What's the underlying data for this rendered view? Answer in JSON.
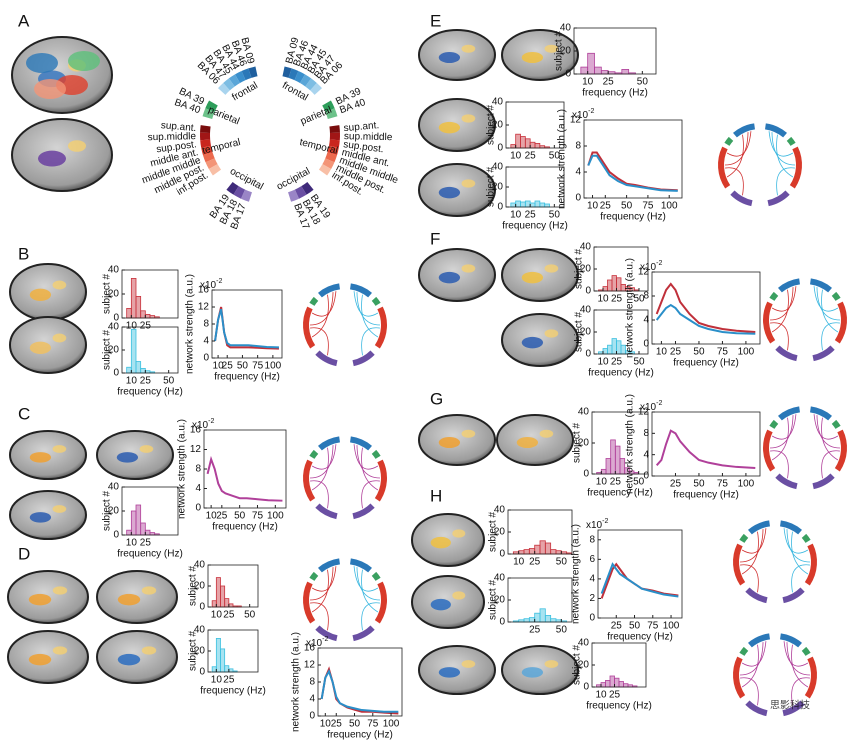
{
  "panel_labels": [
    "A",
    "B",
    "C",
    "D",
    "E",
    "F",
    "G",
    "H"
  ],
  "atlas": {
    "left": [
      {
        "title": "frontal",
        "areas": [
          "BA 09",
          "BA 46",
          "BA 44",
          "BA 45",
          "BA 47",
          "BA 06"
        ]
      },
      {
        "title": "parietal",
        "areas": [
          "BA 39",
          "BA 40"
        ]
      },
      {
        "title": "temporal",
        "areas": [
          "sup.ant.",
          "sup.middle",
          "sup.post.",
          "middle ant.",
          "middle middle",
          "middle post.",
          "inf.post."
        ]
      },
      {
        "title": "occipital",
        "areas": [
          "BA 19",
          "BA 18",
          "BA 17"
        ]
      }
    ],
    "right": [
      {
        "title": "frontal",
        "areas": [
          "BA 09",
          "BA 46",
          "BA 44",
          "BA 45",
          "BA 47",
          "BA 06"
        ]
      },
      {
        "title": "parietal",
        "areas": [
          "BA 39",
          "BA 40"
        ]
      },
      {
        "title": "temporal",
        "areas": [
          "sup.ant.",
          "sup.middle",
          "sup.post.",
          "middle ant.",
          "middle middle",
          "middle post.",
          "inf.post."
        ]
      },
      {
        "title": "occipital",
        "areas": [
          "BA 19",
          "BA 18",
          "BA 17"
        ]
      }
    ]
  },
  "histograms": [
    {
      "ylabel": "subject #",
      "color": "#c8323c",
      "bins": [
        0,
        5,
        10,
        15,
        20,
        25,
        30,
        35,
        40,
        45,
        50,
        55,
        60
      ],
      "counts": [
        0,
        8,
        33,
        18,
        6,
        3,
        2,
        1,
        0,
        0,
        0,
        0
      ],
      "xlim": [
        0,
        60
      ],
      "ylim": [
        0,
        40
      ],
      "xticks": [
        10,
        25
      ],
      "yticks": [
        0,
        20,
        40
      ]
    },
    {
      "ylabel": "subject #",
      "xlabel": "frequency (Hz)",
      "color": "#3cc0e0",
      "bins": [
        0,
        5,
        10,
        15,
        20,
        25,
        30,
        35,
        40,
        45,
        50,
        55,
        60
      ],
      "counts": [
        0,
        5,
        38,
        10,
        4,
        2,
        1,
        0,
        0,
        0,
        0,
        0
      ],
      "xlim": [
        0,
        60
      ],
      "ylim": [
        0,
        40
      ],
      "xticks": [
        10,
        25,
        50
      ],
      "yticks": [
        0,
        20,
        40
      ]
    },
    {
      "ylabel": "subject #",
      "xlabel": "frequency (Hz)",
      "color": "#b0409a",
      "bins": [
        0,
        5,
        10,
        15,
        20,
        25,
        30,
        35,
        40,
        45,
        50,
        55,
        60
      ],
      "counts": [
        0,
        4,
        20,
        25,
        10,
        4,
        2,
        1,
        0,
        0,
        0,
        0
      ],
      "xlim": [
        0,
        60
      ],
      "ylim": [
        0,
        40
      ],
      "xticks": [
        10,
        25
      ],
      "yticks": [
        0,
        20,
        40
      ]
    },
    {
      "ylabel": "subject #",
      "color": "#c8323c",
      "bins": [
        0,
        5,
        10,
        15,
        20,
        25,
        30,
        35,
        40,
        45,
        50,
        55,
        60
      ],
      "counts": [
        0,
        6,
        28,
        20,
        8,
        3,
        1,
        1,
        0,
        0,
        0,
        0
      ],
      "xlim": [
        0,
        60
      ],
      "ylim": [
        0,
        40
      ],
      "xticks": [
        10,
        25,
        50
      ],
      "yticks": [
        0,
        20,
        40
      ]
    },
    {
      "ylabel": "subject #",
      "xlabel": "frequency (Hz)",
      "color": "#3cc0e0",
      "bins": [
        0,
        5,
        10,
        15,
        20,
        25,
        30,
        35,
        40,
        45,
        50,
        55,
        60
      ],
      "counts": [
        0,
        5,
        32,
        22,
        6,
        3,
        1,
        0,
        0,
        0,
        0,
        0
      ],
      "xlim": [
        0,
        60
      ],
      "ylim": [
        0,
        40
      ],
      "xticks": [
        10,
        25
      ],
      "yticks": [
        0,
        20,
        40
      ]
    },
    {
      "ylabel": "subject #",
      "xlabel": "frequency (Hz)",
      "color": "#b0409a",
      "bins": [
        0,
        5,
        10,
        15,
        20,
        25,
        30,
        35,
        40,
        45,
        50,
        55,
        60
      ],
      "counts": [
        0,
        6,
        18,
        6,
        3,
        2,
        1,
        4,
        1,
        0,
        0,
        0
      ],
      "xlim": [
        0,
        60
      ],
      "ylim": [
        0,
        40
      ],
      "xticks": [
        10,
        25,
        50
      ],
      "yticks": [
        0,
        20,
        40
      ]
    },
    {
      "ylabel": "subject #",
      "color": "#c8323c",
      "bins": [
        0,
        5,
        10,
        15,
        20,
        25,
        30,
        35,
        40,
        45,
        50,
        55,
        60
      ],
      "counts": [
        0,
        3,
        12,
        10,
        8,
        5,
        4,
        2,
        1,
        0,
        0,
        0
      ],
      "xlim": [
        0,
        60
      ],
      "ylim": [
        0,
        40
      ],
      "xticks": [
        10,
        25,
        50
      ],
      "yticks": [
        0,
        20,
        40
      ]
    },
    {
      "ylabel": "subject #",
      "xlabel": "frequency (Hz)",
      "color": "#3cc0e0",
      "bins": [
        0,
        5,
        10,
        15,
        20,
        25,
        30,
        35,
        40,
        45,
        50,
        55,
        60
      ],
      "counts": [
        0,
        4,
        6,
        5,
        6,
        4,
        6,
        4,
        3,
        0,
        0,
        0
      ],
      "xlim": [
        0,
        60
      ],
      "ylim": [
        0,
        40
      ],
      "xticks": [
        10,
        25,
        50
      ],
      "yticks": [
        0,
        20,
        40
      ]
    },
    {
      "ylabel": "subject #",
      "color": "#c8323c",
      "bins": [
        0,
        5,
        10,
        15,
        20,
        25,
        30,
        35,
        40,
        45,
        50,
        55,
        60
      ],
      "counts": [
        0,
        1,
        4,
        10,
        14,
        12,
        6,
        4,
        3,
        1,
        0,
        0
      ],
      "xlim": [
        0,
        60
      ],
      "ylim": [
        0,
        40
      ],
      "xticks": [
        10,
        25,
        50
      ],
      "yticks": [
        0,
        20,
        40
      ]
    },
    {
      "ylabel": "subject #",
      "xlabel": "frequency (Hz)",
      "color": "#3cc0e0",
      "bins": [
        0,
        5,
        10,
        15,
        20,
        25,
        30,
        35,
        40,
        45,
        50,
        55,
        60
      ],
      "counts": [
        0,
        2,
        5,
        8,
        14,
        12,
        8,
        3,
        2,
        0,
        0,
        0
      ],
      "xlim": [
        0,
        60
      ],
      "ylim": [
        0,
        40
      ],
      "xticks": [
        10,
        25,
        50
      ],
      "yticks": [
        0,
        20,
        40
      ]
    },
    {
      "ylabel": "subject #",
      "xlabel": "frequency (Hz)",
      "color": "#b0409a",
      "bins": [
        0,
        5,
        10,
        15,
        20,
        25,
        30,
        35,
        40,
        45,
        50,
        55,
        60
      ],
      "counts": [
        0,
        1,
        3,
        10,
        22,
        18,
        10,
        4,
        2,
        1,
        0,
        0
      ],
      "xlim": [
        0,
        60
      ],
      "ylim": [
        0,
        40
      ],
      "xticks": [
        10,
        25,
        50
      ],
      "yticks": [
        0,
        20,
        40
      ]
    },
    {
      "ylabel": "subject #",
      "color": "#c8323c",
      "bins": [
        0,
        5,
        10,
        15,
        20,
        25,
        30,
        35,
        40,
        45,
        50,
        55,
        60
      ],
      "counts": [
        0,
        2,
        3,
        4,
        5,
        8,
        12,
        10,
        4,
        3,
        2,
        1
      ],
      "xlim": [
        0,
        60
      ],
      "ylim": [
        0,
        40
      ],
      "xticks": [
        10,
        25,
        50
      ],
      "yticks": [
        0,
        20,
        40
      ]
    },
    {
      "ylabel": "subject #",
      "color": "#3cc0e0",
      "bins": [
        0,
        5,
        10,
        15,
        20,
        25,
        30,
        35,
        40,
        45,
        50,
        55,
        60
      ],
      "counts": [
        0,
        1,
        2,
        3,
        4,
        8,
        12,
        6,
        3,
        2,
        1,
        0
      ],
      "xlim": [
        0,
        60
      ],
      "ylim": [
        0,
        40
      ],
      "xticks": [
        25,
        50
      ],
      "yticks": [
        0,
        20,
        40
      ]
    },
    {
      "ylabel": "subject #",
      "xlabel": "frequency (Hz)",
      "color": "#b0409a",
      "bins": [
        0,
        5,
        10,
        15,
        20,
        25,
        30,
        35,
        40,
        45,
        50,
        55,
        60
      ],
      "counts": [
        0,
        2,
        4,
        6,
        10,
        8,
        5,
        3,
        2,
        1,
        0,
        0
      ],
      "xlim": [
        0,
        60
      ],
      "ylim": [
        0,
        40
      ],
      "xticks": [
        10,
        25
      ],
      "yticks": [
        0,
        20,
        40
      ]
    }
  ],
  "line_plots": [
    {
      "ylabel": "network strength (a.u.)",
      "xlabel": "frequency (Hz)",
      "scale": "x10",
      "scale_exp": "-2",
      "x": [
        5,
        10,
        15,
        20,
        25,
        30,
        40,
        50,
        60,
        75,
        90,
        110
      ],
      "series": [
        {
          "color": "#c0303a",
          "values": [
            4,
            9,
            12,
            6,
            3,
            2.5,
            2.5,
            2.5,
            2.5,
            2.4,
            2.3,
            2.2
          ]
        },
        {
          "color": "#2a8fc9",
          "values": [
            4,
            9,
            11.5,
            6,
            3.5,
            3,
            3,
            3,
            3,
            2.8,
            2.6,
            2.5
          ]
        }
      ],
      "xlim": [
        0,
        115
      ],
      "ylim": [
        0,
        16
      ],
      "xticks": [
        10,
        25,
        50,
        75,
        100
      ],
      "yticks": [
        0,
        4,
        8,
        12,
        16
      ]
    },
    {
      "ylabel": "network strength (a.u.)",
      "xlabel": "frequency (Hz)",
      "scale": "x10",
      "scale_exp": "-2",
      "x": [
        5,
        10,
        15,
        20,
        25,
        30,
        40,
        50,
        60,
        75,
        90,
        110
      ],
      "series": [
        {
          "color": "#b0409a",
          "values": [
            7,
            10,
            8,
            5,
            3.5,
            3,
            2.5,
            2,
            2,
            1.8,
            1.6,
            1.5
          ]
        }
      ],
      "xlim": [
        0,
        115
      ],
      "ylim": [
        0,
        16
      ],
      "xticks": [
        10,
        25,
        50,
        75,
        100
      ],
      "yticks": [
        0,
        4,
        8,
        12,
        16
      ]
    },
    {
      "ylabel": "network strength (a.u.)",
      "xlabel": "frequency (Hz)",
      "scale": "x10",
      "scale_exp": "-2",
      "x": [
        5,
        10,
        15,
        20,
        25,
        30,
        40,
        50,
        60,
        75,
        90,
        110
      ],
      "series": [
        {
          "color": "#c0303a",
          "values": [
            4,
            9,
            11,
            8,
            4,
            3,
            2,
            1.5,
            1,
            1,
            0.8,
            0.6
          ]
        },
        {
          "color": "#2a8fc9",
          "values": [
            4,
            9,
            10.5,
            8,
            4.5,
            3,
            2.2,
            1.8,
            1.4,
            1.2,
            1,
            1
          ]
        }
      ],
      "xlim": [
        0,
        115
      ],
      "ylim": [
        0,
        16
      ],
      "xticks": [
        10,
        25,
        50,
        75,
        100
      ],
      "yticks": [
        0,
        4,
        8,
        12,
        16
      ]
    },
    {
      "ylabel": "network strength (a.u.)",
      "xlabel": "frequency (Hz)",
      "scale": "x10",
      "scale_exp": "-2",
      "x": [
        5,
        10,
        15,
        20,
        25,
        30,
        40,
        50,
        60,
        75,
        90,
        110
      ],
      "series": [
        {
          "color": "#c0303a",
          "values": [
            5,
            7,
            7,
            6,
            5,
            4,
            3,
            2.2,
            2,
            1.6,
            1.3,
            1.2
          ]
        },
        {
          "color": "#2a8fc9",
          "values": [
            5,
            6.5,
            6.5,
            5.5,
            4.5,
            3.5,
            2.6,
            2,
            1.8,
            1.5,
            1.2,
            1.1
          ]
        }
      ],
      "xlim": [
        0,
        115
      ],
      "ylim": [
        0,
        12
      ],
      "xticks": [
        10,
        25,
        50,
        75,
        100
      ],
      "yticks": [
        0,
        4,
        8,
        12
      ]
    },
    {
      "ylabel": "network strength (a.u.)",
      "xlabel": "frequency (Hz)",
      "scale": "x10",
      "scale_exp": "-2",
      "x": [
        5,
        10,
        15,
        20,
        25,
        30,
        40,
        50,
        60,
        75,
        90,
        110
      ],
      "series": [
        {
          "color": "#c0303a",
          "values": [
            5,
            7,
            9,
            10,
            9,
            7,
            5,
            3.5,
            3,
            2.5,
            2.2,
            2
          ]
        },
        {
          "color": "#2a8fc9",
          "values": [
            4,
            5,
            6,
            6.5,
            6,
            5,
            4,
            3,
            2.5,
            2,
            1.8,
            1.7
          ]
        }
      ],
      "xlim": [
        0,
        115
      ],
      "ylim": [
        0,
        12
      ],
      "xticks": [
        10,
        25,
        50,
        75,
        100
      ],
      "yticks": [
        0,
        4,
        8,
        12
      ]
    },
    {
      "ylabel": "network strength (a.u.)",
      "xlabel": "frequency (Hz)",
      "scale": "x10",
      "scale_exp": "-2",
      "x": [
        5,
        10,
        15,
        20,
        25,
        30,
        40,
        50,
        60,
        75,
        90,
        110
      ],
      "series": [
        {
          "color": "#b0409a",
          "values": [
            2,
            3,
            6,
            8.5,
            8,
            6.5,
            4.5,
            3,
            2.5,
            2,
            1.7,
            1.5
          ]
        }
      ],
      "xlim": [
        0,
        115
      ],
      "ylim": [
        0,
        12
      ],
      "xticks": [
        25,
        50,
        75,
        100
      ],
      "yticks": [
        0,
        4,
        8,
        12
      ]
    },
    {
      "ylabel": "network strength (a.u.)",
      "xlabel": "frequency (Hz)",
      "scale": "x10",
      "scale_exp": "-2",
      "x": [
        5,
        10,
        15,
        20,
        25,
        30,
        40,
        50,
        60,
        75,
        90,
        110
      ],
      "series": [
        {
          "color": "#c0303a",
          "values": [
            2,
            3,
            4,
            5,
            5.5,
            5,
            4,
            3.5,
            3,
            2.8,
            2.5,
            2.3
          ]
        },
        {
          "color": "#2a8fc9",
          "values": [
            2.5,
            3.5,
            4.5,
            5.5,
            5,
            4.5,
            4,
            3.5,
            3,
            2.7,
            2.4,
            2.2
          ]
        }
      ],
      "xlim": [
        0,
        115
      ],
      "ylim": [
        0,
        9
      ],
      "xticks": [
        25,
        50,
        75,
        100
      ],
      "yticks": [
        0,
        2,
        4,
        6,
        8
      ]
    }
  ],
  "watermark": "思影科技"
}
